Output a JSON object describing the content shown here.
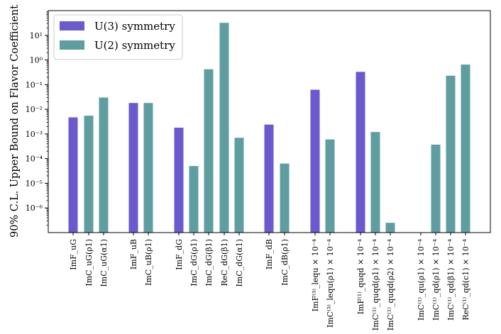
{
  "chart_data": {
    "type": "bar",
    "title": "",
    "xlabel": "",
    "ylabel": "90% C.L. Upper Bound on Flavor Coefficient",
    "yscale": "log",
    "ylim": [
      1e-07,
      100
    ],
    "yticks": [
      {
        "value": 1e-06,
        "label": "10⁻⁶"
      },
      {
        "value": 1e-05,
        "label": "10⁻⁵"
      },
      {
        "value": 0.0001,
        "label": "10⁻⁴"
      },
      {
        "value": 0.001,
        "label": "10⁻³"
      },
      {
        "value": 0.01,
        "label": "10⁻²"
      },
      {
        "value": 0.1,
        "label": "10⁻¹"
      },
      {
        "value": 1,
        "label": "10⁰"
      },
      {
        "value": 10,
        "label": "10¹"
      }
    ],
    "legend": {
      "location": "top-left",
      "entries": [
        {
          "name": "U(3) symmetry",
          "color": "#6a5acd"
        },
        {
          "name": "U(2) symmetry",
          "color": "#5f9ea0"
        }
      ]
    },
    "series": [
      {
        "name": "U(3) symmetry",
        "color": "#6a5acd"
      },
      {
        "name": "U(2) symmetry",
        "color": "#5f9ea0"
      }
    ],
    "bars": [
      {
        "label": "ImF_uG",
        "series": "U(3) symmetry",
        "value": 0.0047
      },
      {
        "label": "ImC_uG(ρ1)",
        "series": "U(2) symmetry",
        "value": 0.0055
      },
      {
        "label": "ImC_uG(α1)",
        "series": "U(2) symmetry",
        "value": 0.03
      },
      {
        "label": "ImF_uB",
        "series": "U(3) symmetry",
        "value": 0.018
      },
      {
        "label": "ImC_uB(ρ1)",
        "series": "U(2) symmetry",
        "value": 0.018
      },
      {
        "label": "ImF_dG",
        "series": "U(3) symmetry",
        "value": 0.0018
      },
      {
        "label": "ImC_dG(ρ1)",
        "series": "U(2) symmetry",
        "value": 5e-05
      },
      {
        "label": "ImC_dG(β1)",
        "series": "U(2) symmetry",
        "value": 0.42
      },
      {
        "label": "ReC_dG(β1)",
        "series": "U(2) symmetry",
        "value": 32
      },
      {
        "label": "ImC_dG(α1)",
        "series": "U(2) symmetry",
        "value": 0.0007
      },
      {
        "label": "ImF_dB",
        "series": "U(3) symmetry",
        "value": 0.0024
      },
      {
        "label": "ImC_dB(ρ1)",
        "series": "U(2) symmetry",
        "value": 6.3e-05
      },
      {
        "label": "ImF⁽³⁾_lequ × 10⁻⁴",
        "series": "U(3) symmetry",
        "value": 0.062
      },
      {
        "label": "ImC⁽³⁾_lequ(ρ1) × 10⁻⁴",
        "series": "U(2) symmetry",
        "value": 0.0006
      },
      {
        "label": "ImF⁽¹⁾_quqd × 10⁻⁴",
        "series": "U(3) symmetry",
        "value": 0.33
      },
      {
        "label": "ImC⁽¹⁾_quqd(ρ1) × 10⁻⁴",
        "series": "U(2) symmetry",
        "value": 0.0012
      },
      {
        "label": "ImC⁽¹⁾_quqd(ρ2) × 10⁻⁴",
        "series": "U(2) symmetry",
        "value": 2.5e-07
      },
      {
        "label": "ImC⁽¹⁾_qu(ρ1) × 10⁻⁴",
        "series": "U(2) symmetry",
        "value": null
      },
      {
        "label": "ImC⁽¹⁾_qd(ρ1) × 10⁻⁴",
        "series": "U(2) symmetry",
        "value": 0.00037
      },
      {
        "label": "ImC⁽¹⁾_qd(β1) × 10⁻⁴",
        "series": "U(2) symmetry",
        "value": 0.23
      },
      {
        "label": "ReC⁽¹⁾_qd(c1) × 10⁻⁴",
        "series": "U(2) symmetry",
        "value": 0.65
      }
    ]
  }
}
